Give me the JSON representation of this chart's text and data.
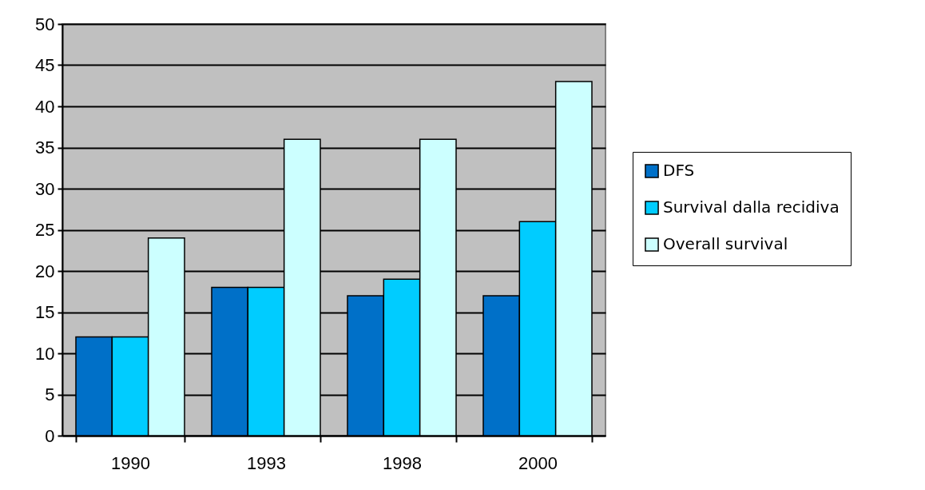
{
  "chart_data": {
    "type": "bar",
    "categories": [
      "1990",
      "1993",
      "1998",
      "2000"
    ],
    "series": [
      {
        "name": "DFS",
        "color": "#0070c8",
        "values": [
          12,
          18,
          17,
          17
        ]
      },
      {
        "name": "Survival dalla recidiva",
        "color": "#00ccff",
        "values": [
          12,
          18,
          19,
          26
        ]
      },
      {
        "name": "Overall survival",
        "color": "#ccffff",
        "values": [
          24,
          36,
          36,
          43
        ]
      }
    ],
    "ylim": [
      0,
      50
    ],
    "yticks": [
      0,
      5,
      10,
      15,
      20,
      25,
      30,
      35,
      40,
      45,
      50
    ],
    "grid": "y",
    "legend": "right"
  }
}
